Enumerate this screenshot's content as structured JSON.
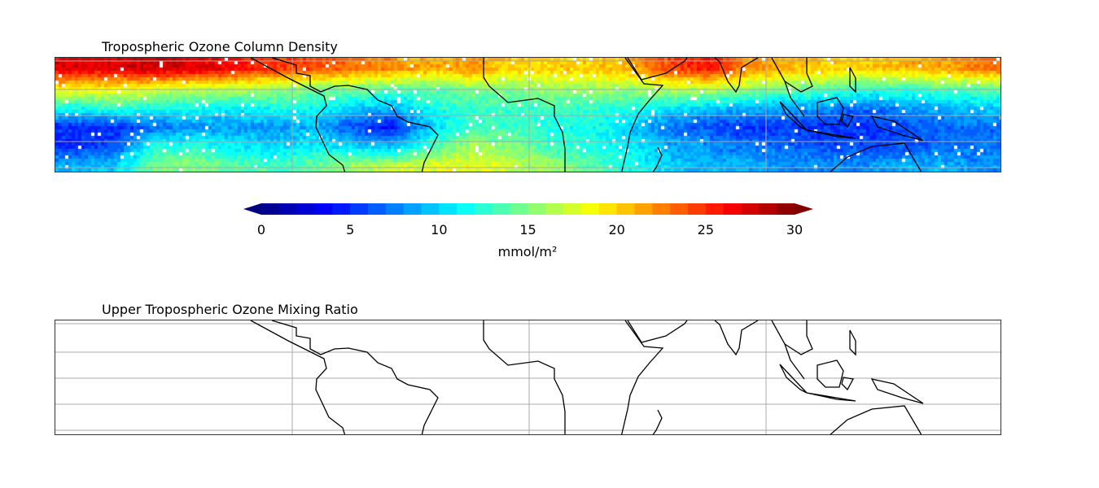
{
  "maps": [
    {
      "title": "Tropospheric Ozone Column Density"
    },
    {
      "title": "Upper Tropospheric Ozone Mixing Ratio"
    }
  ],
  "colorbar": {
    "label": "mmol/m²",
    "min": 0,
    "max": 30,
    "bins": 30,
    "extend": "both",
    "ticks": [
      "0",
      "5",
      "10",
      "15",
      "20",
      "25",
      "30"
    ]
  },
  "chart_data": {
    "type": "heatmap",
    "title": "Tropospheric Ozone Column Density",
    "units": "mmol/m²",
    "zlim": [
      0,
      30
    ],
    "colormap": "jet",
    "grid": "on",
    "note_rows": "north to south, coarse estimate",
    "note_cols": "west to east, coarse estimate",
    "values": [
      [
        27,
        27,
        28,
        27,
        26,
        25,
        24,
        23,
        22,
        21,
        22,
        20,
        20,
        20,
        21,
        24,
        26,
        22,
        21,
        20,
        20,
        21,
        21,
        23
      ],
      [
        19,
        19,
        18,
        17,
        17,
        16,
        15,
        15,
        14,
        14,
        15,
        15,
        16,
        16,
        16,
        17,
        17,
        16,
        15,
        14,
        13,
        13,
        14,
        14
      ],
      [
        12,
        13,
        12,
        12,
        11,
        12,
        12,
        10,
        9,
        12,
        13,
        13,
        13,
        13,
        12,
        11,
        10,
        9,
        9,
        8,
        7,
        8,
        9,
        10
      ],
      [
        5,
        5,
        7,
        8,
        8,
        8,
        9,
        6,
        4,
        10,
        13,
        13,
        12,
        12,
        10,
        7,
        6,
        5,
        5,
        5,
        5,
        6,
        7,
        7
      ],
      [
        5,
        6,
        12,
        12,
        11,
        10,
        11,
        10,
        9,
        13,
        16,
        15,
        13,
        12,
        11,
        9,
        8,
        7,
        7,
        6,
        6,
        6,
        7,
        7
      ],
      [
        9,
        10,
        15,
        15,
        14,
        13,
        14,
        16,
        17,
        18,
        18,
        17,
        16,
        14,
        12,
        10,
        9,
        9,
        8,
        8,
        8,
        9,
        9,
        8
      ]
    ],
    "second_map": "empty (no data plotted)"
  }
}
